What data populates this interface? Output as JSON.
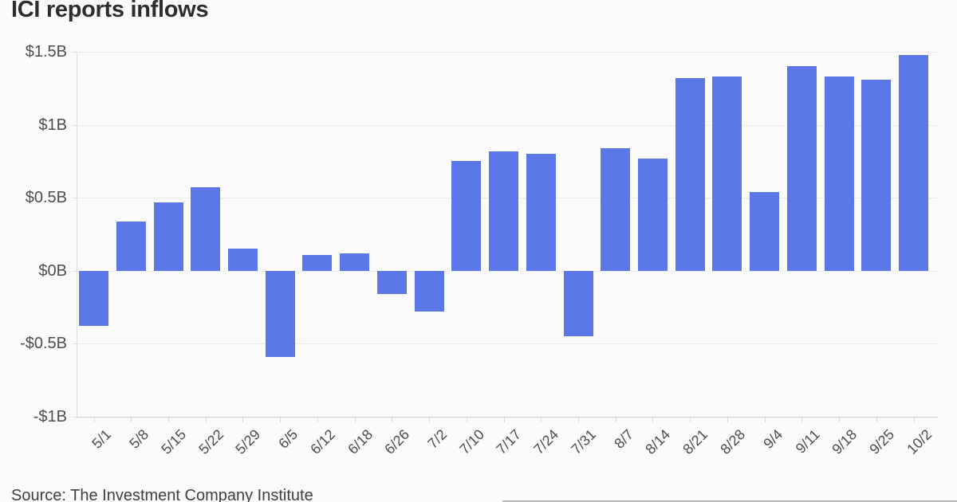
{
  "title": "ICI reports inflows",
  "source": "Source: The Investment Company Institute",
  "colors": {
    "bar": "#5c77e8",
    "title_text": "#2d2d2d",
    "axis_text": "#4d4d4d",
    "gridline": "#ececec",
    "axis_line": "#cfcfcf",
    "background": "#fbfbfb",
    "bottom_rule": "#b9b9b9"
  },
  "chart_data": {
    "type": "bar",
    "title": "ICI reports inflows",
    "unit": "billions of dollars",
    "categories": [
      "5/1",
      "5/8",
      "5/15",
      "5/22",
      "5/29",
      "6/5",
      "6/12",
      "6/18",
      "6/26",
      "7/2",
      "7/10",
      "7/17",
      "7/24",
      "7/31",
      "8/7",
      "8/14",
      "8/21",
      "8/28",
      "9/4",
      "9/11",
      "9/18",
      "9/25",
      "10/2"
    ],
    "values": [
      -0.38,
      0.34,
      0.47,
      0.57,
      0.15,
      -0.59,
      0.11,
      0.12,
      -0.16,
      -0.28,
      0.75,
      0.82,
      0.8,
      -0.45,
      0.84,
      0.77,
      1.32,
      1.33,
      0.54,
      1.4,
      1.33,
      1.31,
      1.48
    ],
    "y_ticks": [
      "$1.5B",
      "$1B",
      "$0.5B",
      "$0B",
      "-$0.5B",
      "-$1B"
    ],
    "y_tick_values": [
      1.5,
      1,
      0.5,
      0,
      -0.5,
      -1
    ],
    "ylim": [
      -1,
      1.5
    ],
    "xlabel": "",
    "ylabel": "",
    "grid": "horizontal",
    "legend": "none",
    "x_label_rotation": -45,
    "source": "Source: The Investment Company Institute"
  }
}
